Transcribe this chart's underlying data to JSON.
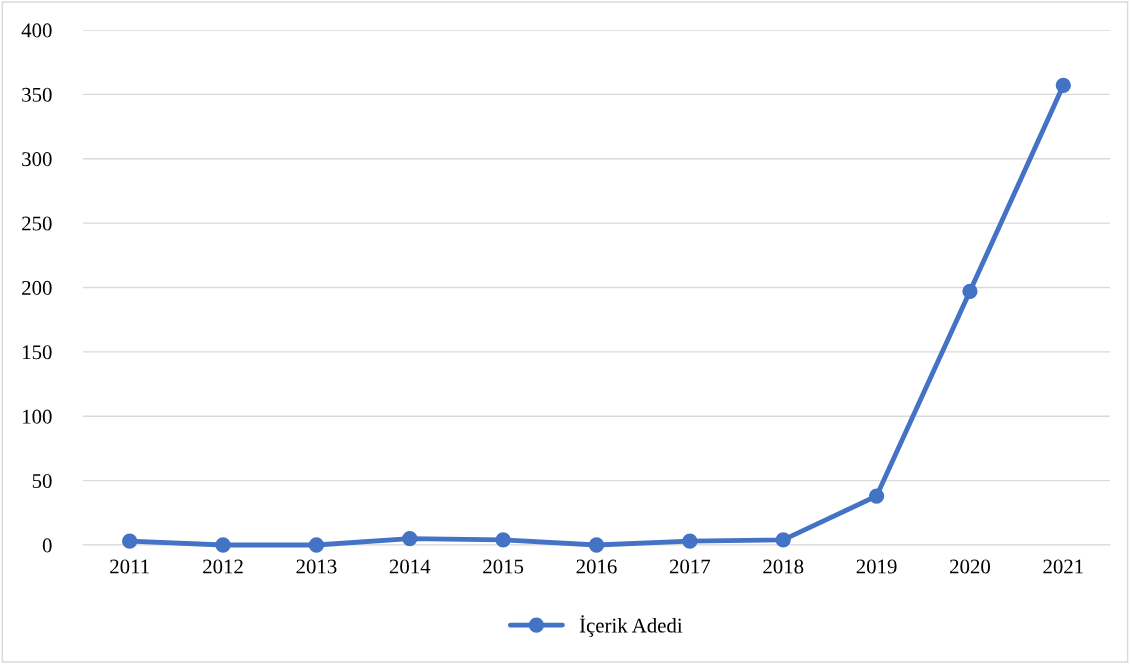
{
  "chart_data": {
    "type": "line",
    "categories": [
      "2011",
      "2012",
      "2013",
      "2014",
      "2015",
      "2016",
      "2017",
      "2018",
      "2019",
      "2020",
      "2021"
    ],
    "series": [
      {
        "name": "İçerik Adedi",
        "color": "#4472c4",
        "values": [
          3,
          0,
          0,
          5,
          4,
          0,
          3,
          4,
          38,
          197,
          357
        ]
      }
    ],
    "ylim": [
      0,
      400
    ],
    "yticks": [
      0,
      50,
      100,
      150,
      200,
      250,
      300,
      350,
      400
    ],
    "grid": "y",
    "legend": "bottom",
    "marker": "circle",
    "line_style": "solid"
  }
}
